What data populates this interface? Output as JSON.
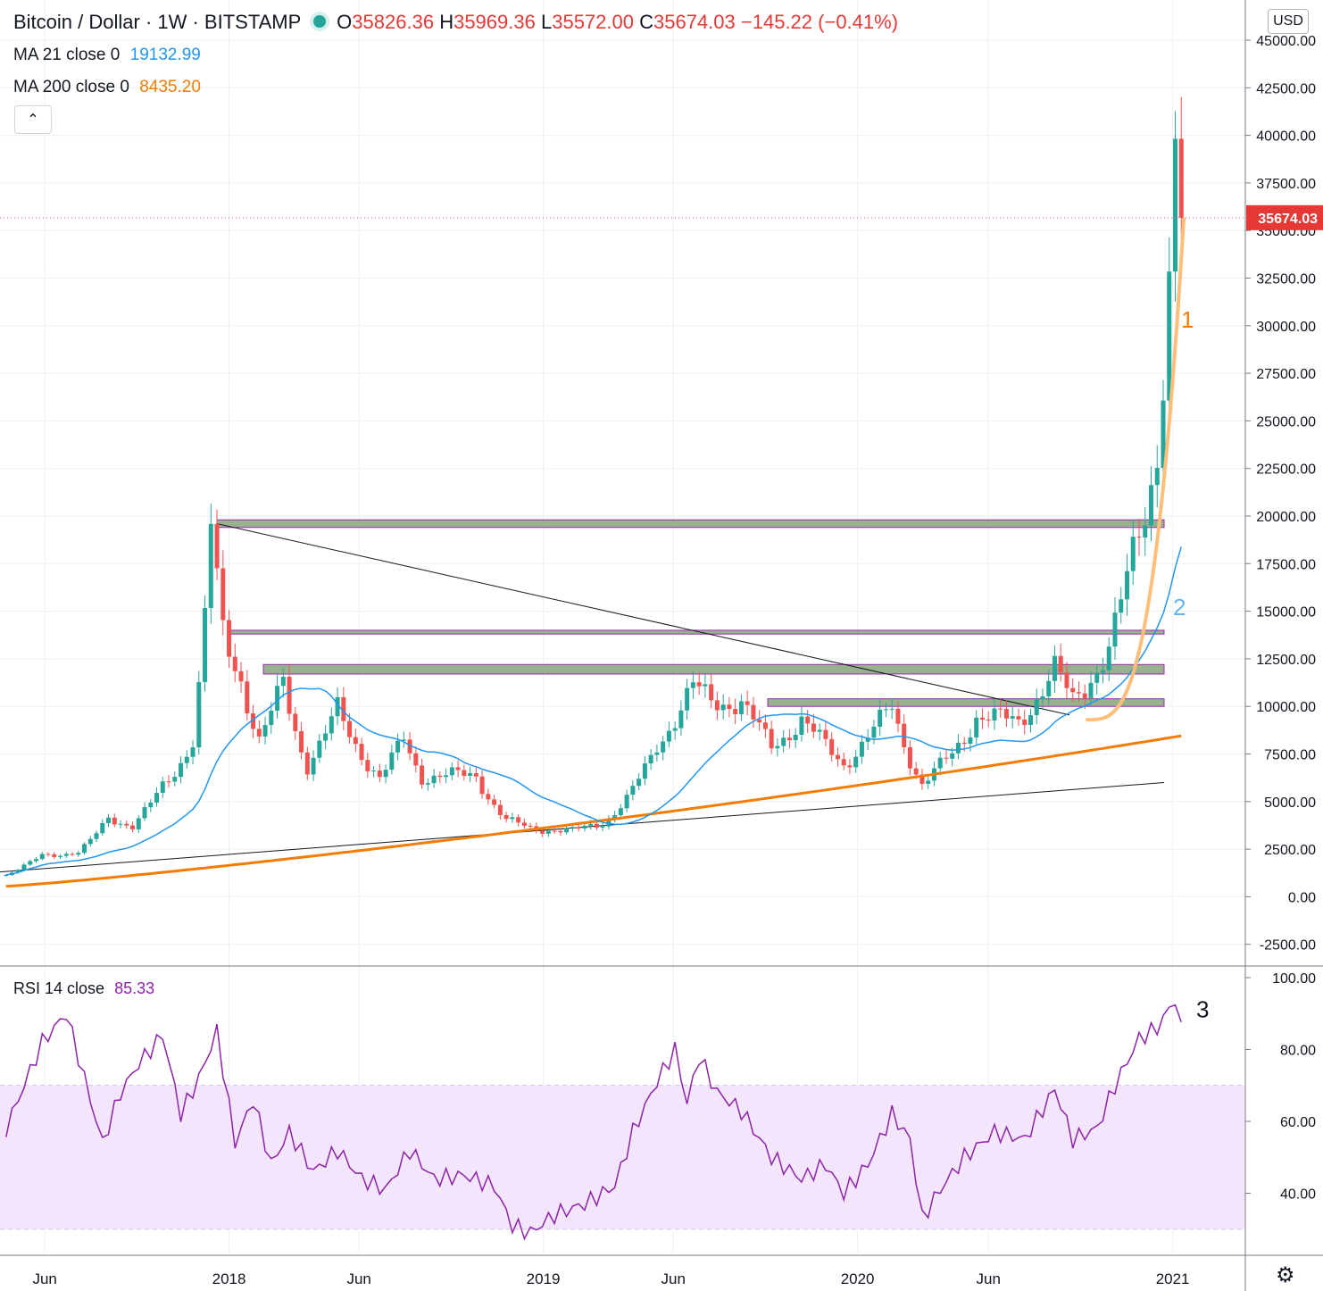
{
  "header": {
    "symbol": "Bitcoin / Dollar · 1W · BITSTAMP",
    "open_label": "O",
    "open": "35826.36",
    "high_label": "H",
    "high": "35969.36",
    "low_label": "L",
    "low": "35572.00",
    "close_label": "C",
    "close": "35674.03",
    "change": "−145.22 (−0.41%)",
    "currency": "USD"
  },
  "indicators": {
    "ma21_label": "MA 21 close 0",
    "ma21_value": "19132.99",
    "ma200_label": "MA 200 close 0",
    "ma200_value": "8435.20",
    "rsi_label": "RSI 14 close",
    "rsi_value": "85.33"
  },
  "colors": {
    "up": "#26a69a",
    "down": "#ef5350",
    "ma21": "#2196f3",
    "ma200": "#f57c00",
    "rsi": "#8e24aa",
    "rsi_band": "#f3e5fb",
    "zone_fill": "#8daa82",
    "zone_border": "#9c27b0",
    "curve1": "#ffbf7a",
    "trendline": "#131722"
  },
  "chart_data": [
    {
      "type": "candlestick",
      "interval": "1W",
      "ylim": [
        -3500,
        46000
      ],
      "price_ticks": [
        "45000.00",
        "42500.00",
        "40000.00",
        "37500.00",
        "35000.00",
        "32500.00",
        "30000.00",
        "27500.00",
        "25000.00",
        "22500.00",
        "20000.00",
        "17500.00",
        "15000.00",
        "12500.00",
        "10000.00",
        "7500.00",
        "5000.00",
        "2500.00",
        "0.00",
        "-2500.00"
      ],
      "last_price_label": "35674.03",
      "last_price": 35674.03,
      "time_ticks": [
        "Jun",
        "2018",
        "Jun",
        "2019",
        "Jun",
        "2020",
        "Jun",
        "2021"
      ],
      "annotations": [
        "1",
        "2"
      ],
      "zones": [
        {
          "top": 19800,
          "bottom": 19400
        },
        {
          "top": 14000,
          "bottom": 13800
        },
        {
          "top": 12200,
          "bottom": 11700
        },
        {
          "top": 10400,
          "bottom": 10000
        }
      ],
      "keypoints": [
        {
          "date": "2017-04-17",
          "close": 1150
        },
        {
          "date": "2017-05-29",
          "close": 2200
        },
        {
          "date": "2017-07-10",
          "close": 2300
        },
        {
          "date": "2017-08-14",
          "close": 4200
        },
        {
          "date": "2017-09-11",
          "close": 3700
        },
        {
          "date": "2017-10-16",
          "close": 5800
        },
        {
          "date": "2017-11-20",
          "close": 8200
        },
        {
          "date": "2017-12-11",
          "close": 19300
        },
        {
          "date": "2017-12-25",
          "close": 14000
        },
        {
          "date": "2018-01-15",
          "close": 11500
        },
        {
          "date": "2018-02-05",
          "close": 8100
        },
        {
          "date": "2018-03-05",
          "close": 11300
        },
        {
          "date": "2018-04-02",
          "close": 6900
        },
        {
          "date": "2018-05-07",
          "close": 9800
        },
        {
          "date": "2018-06-25",
          "close": 6200
        },
        {
          "date": "2018-07-23",
          "close": 8300
        },
        {
          "date": "2018-08-13",
          "close": 6300
        },
        {
          "date": "2018-10-15",
          "close": 6400
        },
        {
          "date": "2018-11-19",
          "close": 4000
        },
        {
          "date": "2018-12-17",
          "close": 3600
        },
        {
          "date": "2019-02-04",
          "close": 3450
        },
        {
          "date": "2019-03-11",
          "close": 3900
        },
        {
          "date": "2019-04-08",
          "close": 5100
        },
        {
          "date": "2019-05-13",
          "close": 8000
        },
        {
          "date": "2019-06-24",
          "close": 11000
        },
        {
          "date": "2019-07-15",
          "close": 10300
        },
        {
          "date": "2019-08-19",
          "close": 10200
        },
        {
          "date": "2019-09-23",
          "close": 7900
        },
        {
          "date": "2019-10-28",
          "close": 9300
        },
        {
          "date": "2019-12-16",
          "close": 7000
        },
        {
          "date": "2020-02-10",
          "close": 10000
        },
        {
          "date": "2020-03-16",
          "close": 5900
        },
        {
          "date": "2020-04-20",
          "close": 7500
        },
        {
          "date": "2020-05-18",
          "close": 9500
        },
        {
          "date": "2020-07-06",
          "close": 9200
        },
        {
          "date": "2020-08-17",
          "close": 11900
        },
        {
          "date": "2020-09-07",
          "close": 10300
        },
        {
          "date": "2020-10-19",
          "close": 13000
        },
        {
          "date": "2020-11-16",
          "close": 18000
        },
        {
          "date": "2020-12-14",
          "close": 23500
        },
        {
          "date": "2020-12-28",
          "close": 32000
        },
        {
          "date": "2021-01-04",
          "close": 38200
        },
        {
          "date": "2021-01-11",
          "close": 35674
        }
      ]
    },
    {
      "type": "line",
      "name": "RSI 14 close",
      "ylim": [
        25,
        100
      ],
      "y_ticks": [
        "100.00",
        "80.00",
        "60.00",
        "40.00"
      ],
      "band": [
        30,
        70
      ],
      "annotations": [
        "3"
      ],
      "points": [
        {
          "date": "2017-04-17",
          "y": 58
        },
        {
          "date": "2017-05-29",
          "y": 82
        },
        {
          "date": "2017-06-26",
          "y": 90
        },
        {
          "date": "2017-07-17",
          "y": 72
        },
        {
          "date": "2017-08-07",
          "y": 54
        },
        {
          "date": "2017-08-28",
          "y": 68
        },
        {
          "date": "2017-09-18",
          "y": 76
        },
        {
          "date": "2017-10-16",
          "y": 84
        },
        {
          "date": "2017-11-06",
          "y": 62
        },
        {
          "date": "2017-11-27",
          "y": 72
        },
        {
          "date": "2017-12-18",
          "y": 85
        },
        {
          "date": "2018-01-08",
          "y": 54
        },
        {
          "date": "2018-01-29",
          "y": 66
        },
        {
          "date": "2018-02-19",
          "y": 48
        },
        {
          "date": "2018-03-12",
          "y": 57
        },
        {
          "date": "2018-04-09",
          "y": 46
        },
        {
          "date": "2018-05-07",
          "y": 52
        },
        {
          "date": "2018-06-04",
          "y": 44
        },
        {
          "date": "2018-07-02",
          "y": 41
        },
        {
          "date": "2018-07-30",
          "y": 52
        },
        {
          "date": "2018-08-27",
          "y": 44
        },
        {
          "date": "2018-10-01",
          "y": 45
        },
        {
          "date": "2018-11-05",
          "y": 42
        },
        {
          "date": "2018-11-26",
          "y": 31
        },
        {
          "date": "2018-12-17",
          "y": 29
        },
        {
          "date": "2019-01-14",
          "y": 34
        },
        {
          "date": "2019-02-18",
          "y": 37
        },
        {
          "date": "2019-03-25",
          "y": 42
        },
        {
          "date": "2019-04-15",
          "y": 57
        },
        {
          "date": "2019-05-13",
          "y": 71
        },
        {
          "date": "2019-06-03",
          "y": 80
        },
        {
          "date": "2019-06-17",
          "y": 65
        },
        {
          "date": "2019-07-01",
          "y": 78
        },
        {
          "date": "2019-07-22",
          "y": 68
        },
        {
          "date": "2019-08-19",
          "y": 63
        },
        {
          "date": "2019-09-23",
          "y": 50
        },
        {
          "date": "2019-10-28",
          "y": 44
        },
        {
          "date": "2019-11-25",
          "y": 48
        },
        {
          "date": "2019-12-16",
          "y": 40
        },
        {
          "date": "2020-01-13",
          "y": 48
        },
        {
          "date": "2020-02-10",
          "y": 62
        },
        {
          "date": "2020-03-02",
          "y": 55
        },
        {
          "date": "2020-03-16",
          "y": 33
        },
        {
          "date": "2020-04-06",
          "y": 41
        },
        {
          "date": "2020-05-04",
          "y": 50
        },
        {
          "date": "2020-06-08",
          "y": 57
        },
        {
          "date": "2020-07-13",
          "y": 55
        },
        {
          "date": "2020-08-17",
          "y": 69
        },
        {
          "date": "2020-09-07",
          "y": 55
        },
        {
          "date": "2020-10-05",
          "y": 58
        },
        {
          "date": "2020-10-26",
          "y": 70
        },
        {
          "date": "2020-11-23",
          "y": 83
        },
        {
          "date": "2020-12-14",
          "y": 86
        },
        {
          "date": "2021-01-04",
          "y": 94
        },
        {
          "date": "2021-01-11",
          "y": 85.33
        }
      ]
    }
  ]
}
